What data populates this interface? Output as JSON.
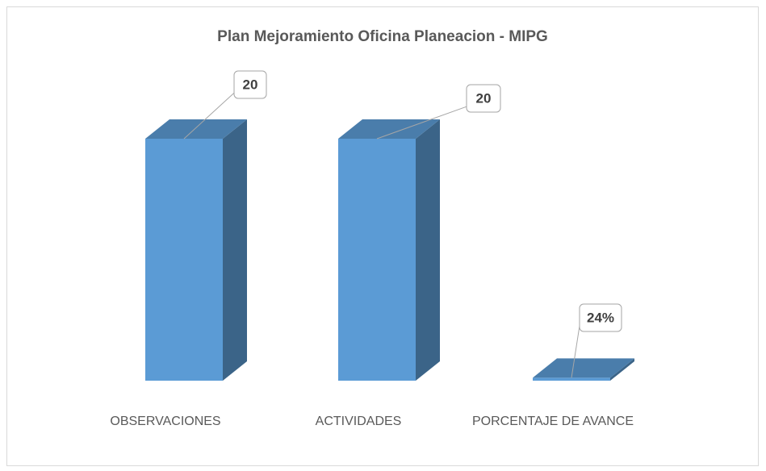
{
  "chart_data": {
    "type": "bar3d",
    "title": "Plan Mejoramiento Oficina Planeacion -  MIPG",
    "categories": [
      "OBSERVACIONES",
      "ACTIVIDADES",
      "PORCENTAJE DE AVANCE"
    ],
    "values": [
      20,
      20,
      0.24
    ],
    "value_labels": [
      "20",
      "20",
      "24%"
    ],
    "color": "#5b9bd5"
  }
}
